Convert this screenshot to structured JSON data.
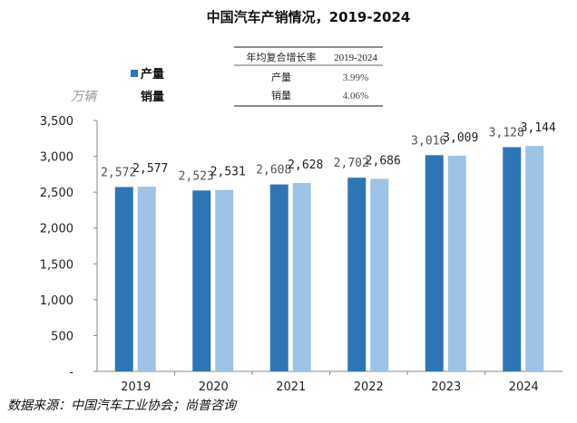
{
  "chart_data": {
    "type": "bar",
    "title": "中国汽车产销情况，2019-2024",
    "ylabel": "万辆",
    "xlabel": "",
    "categories": [
      "2019",
      "2020",
      "2021",
      "2022",
      "2023",
      "2024"
    ],
    "series": [
      {
        "name": "产量",
        "color": "#2e75b6",
        "values": [
          2572,
          2523,
          2608,
          2702,
          3016,
          3128
        ]
      },
      {
        "name": "销量",
        "color": "#9dc3e6",
        "values": [
          2577,
          2531,
          2628,
          2686,
          3009,
          3144
        ]
      }
    ],
    "data_labels": {
      "产量": [
        "2,572",
        "2,523",
        "2,608",
        "2,702",
        "3,016",
        "3,128"
      ],
      "销量": [
        "2,577",
        "2,531",
        "2,628",
        "2,686",
        "3,009",
        "3,144"
      ]
    },
    "ylim": [
      0,
      3500
    ],
    "yticks": [
      "-",
      "500",
      "1,000",
      "1,500",
      "2,000",
      "2,500",
      "3,000",
      "3,500"
    ],
    "grid": false,
    "legend": "top-left",
    "table": {
      "header": [
        "年均复合增长率",
        "2019-2024"
      ],
      "rows": [
        [
          "产量",
          "3.99%"
        ],
        [
          "销量",
          "4.06%"
        ]
      ]
    },
    "source": "数据来源：中国汽车工业协会；尚普咨询"
  }
}
